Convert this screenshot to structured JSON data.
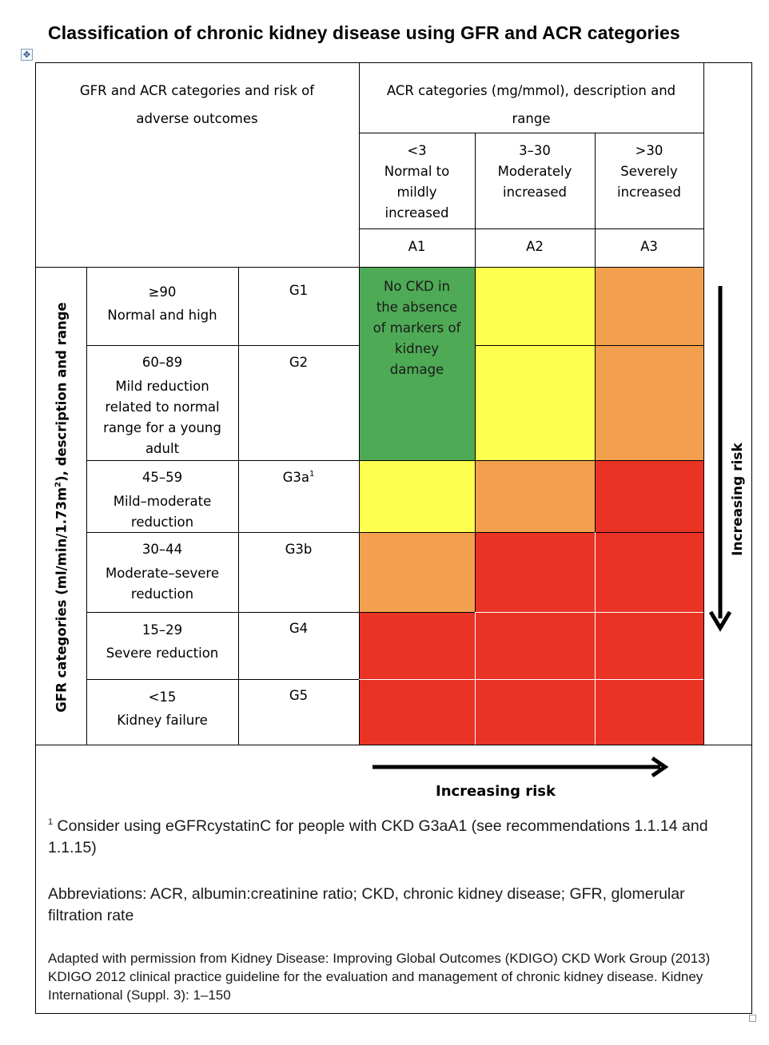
{
  "title": "Classification of chronic kidney disease using GFR and ACR categories",
  "header": {
    "left": [
      "GFR and ACR categories and risk of",
      "adverse outcomes"
    ],
    "acr_title": [
      "ACR categories (mg/mmol), description and",
      "range"
    ]
  },
  "acr_categories": [
    {
      "range": "<3",
      "description": [
        "Normal to",
        "mildly",
        "increased"
      ],
      "code": "A1"
    },
    {
      "range": "3–30",
      "description": [
        "Moderately",
        "increased"
      ],
      "code": "A2"
    },
    {
      "range": ">30",
      "description": [
        "Severely",
        "increased"
      ],
      "code": "A3"
    }
  ],
  "gfr_axis_label": {
    "main": "GFR categories (ml/min/1.73m",
    "sup": "2",
    "end": "), description and range"
  },
  "gfr_categories": [
    {
      "range": "≥90",
      "description": [
        "Normal and high"
      ],
      "code": "G1",
      "sup": ""
    },
    {
      "range": "60–89",
      "description": [
        "Mild reduction",
        "related to normal",
        "range for a young",
        "adult"
      ],
      "code": "G2",
      "sup": ""
    },
    {
      "range": "45–59",
      "description": [
        "Mild–moderate",
        "reduction"
      ],
      "code": "G3a",
      "sup": "1"
    },
    {
      "range": "30–44",
      "description": [
        "Moderate–severe",
        "reduction"
      ],
      "code": "G3b",
      "sup": ""
    },
    {
      "range": "15–29",
      "description": [
        "Severe reduction"
      ],
      "code": "G4",
      "sup": ""
    },
    {
      "range": "<15",
      "description": [
        "Kidney failure"
      ],
      "code": "G5",
      "sup": ""
    }
  ],
  "risk_grid": [
    [
      "green",
      "yellow",
      "orange"
    ],
    [
      "green",
      "yellow",
      "orange"
    ],
    [
      "yellow",
      "orange",
      "red"
    ],
    [
      "orange",
      "red",
      "red"
    ],
    [
      "red",
      "red",
      "red"
    ],
    [
      "red",
      "red",
      "red"
    ]
  ],
  "no_ckd_text": [
    "No CKD in",
    "the absence",
    "of markers of",
    "kidney",
    "damage"
  ],
  "increasing_risk_vertical": "Increasing risk",
  "increasing_risk_horizontal": "Increasing risk",
  "colors": {
    "green": "#4eaa55",
    "yellow": "#ffff50",
    "orange": "#f2a04e",
    "red": "#e83325"
  },
  "footnote": {
    "marker": "1",
    "text": "Consider using eGFRcystatinC for people with CKD G3aA1 (see recommendations 1.1.14 and 1.1.15)"
  },
  "abbreviations": "Abbreviations: ACR, albumin:creatinine ratio; CKD, chronic kidney disease; GFR, glomerular filtration rate",
  "source": "Adapted with permission from Kidney Disease: Improving Global Outcomes (KDIGO) CKD Work Group (2013) KDIGO 2012 clinical practice guideline for the evaluation and management of chronic kidney disease. Kidney International (Suppl. 3): 1–150",
  "icons": {
    "move_handle": "move-arrows-icon",
    "resize_handle": "resize-handle-icon"
  }
}
